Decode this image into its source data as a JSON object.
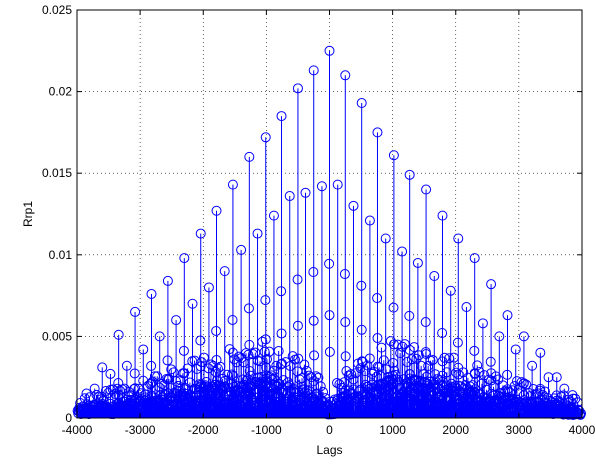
{
  "chart_data": {
    "type": "stem",
    "title": "",
    "xlabel": "Lags",
    "ylabel": "Rrp1",
    "xlim": [
      -4000,
      4000
    ],
    "ylim": [
      0,
      0.025
    ],
    "xticks": [
      -4000,
      -3000,
      -2000,
      -1000,
      0,
      1000,
      2000,
      3000,
      4000
    ],
    "yticks": [
      0,
      0.005,
      0.01,
      0.015,
      0.02,
      0.025
    ],
    "xtick_labels": [
      "-4000",
      "-3000",
      "-2000",
      "-1000",
      "0",
      "1000",
      "2000",
      "3000",
      "4000"
    ],
    "ytick_labels": [
      "0",
      "0.005",
      "0.01",
      "0.015",
      "0.02",
      "0.025"
    ],
    "grid": true,
    "grid_style": "dotted",
    "series_color": "#0000ff",
    "marker": "circle",
    "series": [
      {
        "name": "",
        "primary_peaks": {
          "x": [
            -3850,
            -3600,
            -3340,
            -3080,
            -2820,
            -2560,
            -2300,
            -2040,
            -1790,
            -1530,
            -1270,
            -1010,
            -760,
            -500,
            -250,
            0,
            250,
            510,
            760,
            1020,
            1270,
            1530,
            1790,
            2040,
            2300,
            2560,
            2820,
            3080,
            3340,
            3600,
            3850
          ],
          "y": [
            0.0015,
            0.0031,
            0.0051,
            0.0065,
            0.0076,
            0.0084,
            0.0098,
            0.0113,
            0.0127,
            0.0143,
            0.016,
            0.0172,
            0.0185,
            0.0202,
            0.0213,
            0.0225,
            0.021,
            0.0193,
            0.0175,
            0.0161,
            0.0149,
            0.014,
            0.0124,
            0.011,
            0.0098,
            0.0082,
            0.0063,
            0.005,
            0.004,
            0.0025,
            0.0014
          ]
        },
        "secondary_peaks": {
          "x": [
            -3720,
            -3470,
            -3210,
            -2950,
            -2690,
            -2430,
            -2170,
            -1910,
            -1660,
            -1400,
            -1140,
            -880,
            -630,
            -380,
            -120,
            130,
            380,
            640,
            890,
            1150,
            1400,
            1660,
            1920,
            2170,
            2430,
            2690,
            2950,
            3210,
            3470,
            3720
          ],
          "y": [
            0.0018,
            0.0027,
            0.0032,
            0.0042,
            0.005,
            0.006,
            0.007,
            0.008,
            0.009,
            0.0103,
            0.0113,
            0.0124,
            0.0136,
            0.0138,
            0.0142,
            0.0143,
            0.013,
            0.0121,
            0.011,
            0.0102,
            0.0095,
            0.0087,
            0.0078,
            0.0068,
            0.0058,
            0.005,
            0.0042,
            0.0032,
            0.0025,
            0.0018
          ]
        },
        "baseline_envelope": {
          "x": [
            -4000,
            -3000,
            -2000,
            -1000,
            -200,
            0,
            200,
            1000,
            2000,
            3000,
            4000
          ],
          "y": [
            0.0006,
            0.0012,
            0.002,
            0.0026,
            0.0016,
            0.0005,
            0.0016,
            0.0026,
            0.002,
            0.0012,
            0.0006
          ]
        }
      }
    ]
  }
}
